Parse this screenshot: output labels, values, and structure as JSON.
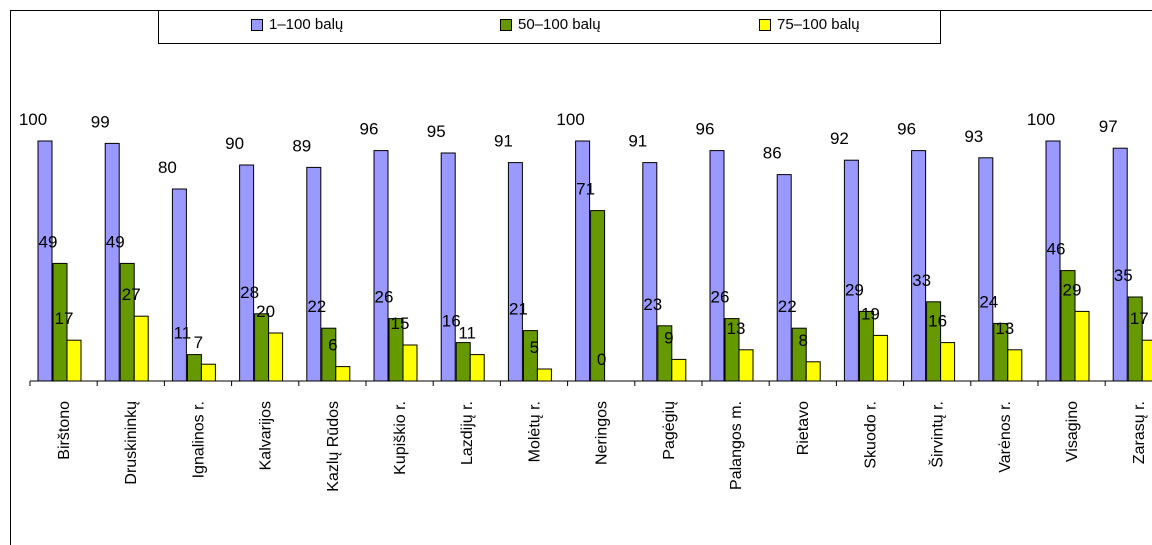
{
  "chart_data": {
    "type": "bar",
    "categories": [
      "Birštono",
      "Druskininkų",
      "Ignalinos r.",
      "Kalvarijos",
      "Kazlų Rūdos",
      "Kupiškio r.",
      "Lazdijų r.",
      "Molėtų r.",
      "Neringos",
      "Pagėgių",
      "Palangos m.",
      "Rietavo",
      "Skuodo r.",
      "Širvintų r.",
      "Varėnos r.",
      "Visagino",
      "Zarasų r."
    ],
    "series": [
      {
        "name": "1–100 balų",
        "color": "#9999ff",
        "values": [
          100,
          99,
          80,
          90,
          89,
          96,
          95,
          91,
          100,
          91,
          96,
          86,
          92,
          96,
          93,
          100,
          97
        ]
      },
      {
        "name": "50–100 balų",
        "color": "#669900",
        "values": [
          49,
          49,
          11,
          28,
          22,
          26,
          16,
          21,
          71,
          23,
          26,
          22,
          29,
          33,
          24,
          46,
          35
        ]
      },
      {
        "name": "75–100 balų",
        "color": "#ffff00",
        "values": [
          17,
          27,
          7,
          20,
          6,
          15,
          11,
          5,
          0,
          9,
          13,
          8,
          19,
          16,
          13,
          29,
          17
        ]
      }
    ],
    "ylim": [
      0,
      120
    ],
    "grid": false,
    "legend_position": "top"
  }
}
